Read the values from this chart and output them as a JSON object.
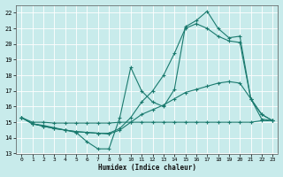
{
  "xlabel": "Humidex (Indice chaleur)",
  "xlim": [
    -0.5,
    23.5
  ],
  "ylim": [
    13,
    22.5
  ],
  "yticks": [
    13,
    14,
    15,
    16,
    17,
    18,
    19,
    20,
    21,
    22
  ],
  "xticks": [
    0,
    1,
    2,
    3,
    4,
    5,
    6,
    7,
    8,
    9,
    10,
    11,
    12,
    13,
    14,
    15,
    16,
    17,
    18,
    19,
    20,
    21,
    22,
    23
  ],
  "bg_color": "#c8ebeb",
  "line_color": "#1a7a6e",
  "grid_color": "#b0d8d8",
  "lines": [
    {
      "x": [
        0,
        1,
        2,
        3,
        4,
        5,
        6,
        7,
        8,
        9,
        10,
        11,
        12,
        13,
        14,
        15,
        16,
        17,
        18,
        19,
        20,
        21,
        22,
        23
      ],
      "y": [
        15.3,
        14.9,
        14.75,
        14.6,
        14.5,
        14.35,
        13.75,
        13.3,
        13.3,
        15.3,
        18.5,
        17.0,
        16.3,
        16.0,
        17.1,
        21.1,
        21.5,
        22.1,
        21.0,
        20.4,
        20.5,
        16.5,
        15.2,
        15.1
      ]
    },
    {
      "x": [
        0,
        1,
        2,
        3,
        4,
        5,
        6,
        7,
        8,
        9,
        10,
        11,
        12,
        13,
        14,
        15,
        16,
        17,
        18,
        19,
        20,
        21,
        22,
        23
      ],
      "y": [
        15.3,
        14.9,
        14.75,
        14.6,
        14.5,
        14.4,
        14.35,
        14.3,
        14.3,
        14.6,
        15.3,
        16.3,
        17.0,
        18.0,
        19.4,
        21.0,
        21.3,
        21.0,
        20.5,
        20.2,
        20.1,
        16.5,
        15.5,
        15.1
      ]
    },
    {
      "x": [
        0,
        1,
        2,
        3,
        4,
        5,
        6,
        7,
        8,
        9,
        10,
        11,
        12,
        13,
        14,
        15,
        16,
        17,
        18,
        19,
        20,
        21,
        22,
        23
      ],
      "y": [
        15.3,
        14.9,
        14.8,
        14.65,
        14.5,
        14.4,
        14.35,
        14.3,
        14.25,
        14.5,
        15.0,
        15.5,
        15.8,
        16.1,
        16.5,
        16.9,
        17.1,
        17.3,
        17.5,
        17.6,
        17.5,
        16.5,
        15.5,
        15.1
      ]
    },
    {
      "x": [
        0,
        1,
        2,
        3,
        4,
        5,
        6,
        7,
        8,
        9,
        10,
        11,
        12,
        13,
        14,
        15,
        16,
        17,
        18,
        19,
        20,
        21,
        22,
        23
      ],
      "y": [
        15.3,
        15.0,
        15.0,
        14.95,
        14.95,
        14.95,
        14.95,
        14.95,
        14.95,
        15.0,
        15.0,
        15.0,
        15.0,
        15.0,
        15.0,
        15.0,
        15.0,
        15.0,
        15.0,
        15.0,
        15.0,
        15.0,
        15.1,
        15.1
      ]
    }
  ]
}
